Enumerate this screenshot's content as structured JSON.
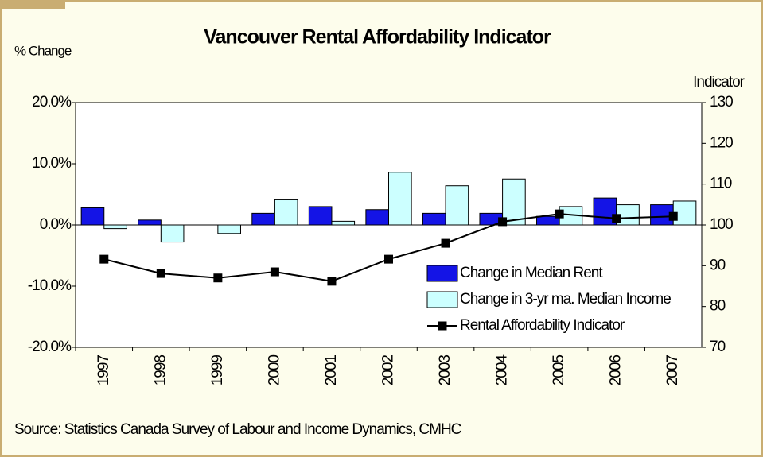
{
  "chart_data": {
    "type": "bar",
    "title": "Vancouver Rental Affordability Indicator",
    "y_label": "% Change",
    "y2_label": "Indicator",
    "source": "Source: Statistics Canada Survey of Labour and Income Dynamics, CMHC",
    "categories": [
      "1997",
      "1998",
      "1999",
      "2000",
      "2001",
      "2002",
      "2003",
      "2004",
      "2005",
      "2006",
      "2007"
    ],
    "series": [
      {
        "name": "Change in Median Rent",
        "type": "bar",
        "color": "#1414e6",
        "values": [
          2.8,
          0.8,
          0,
          1.9,
          3.0,
          2.5,
          1.9,
          1.9,
          1.4,
          4.4,
          3.3
        ]
      },
      {
        "name": "Change in 3-yr ma. Median Income",
        "type": "bar",
        "color": "#ccffff",
        "values": [
          -0.6,
          -2.8,
          -1.4,
          4.1,
          0.6,
          8.6,
          6.4,
          7.5,
          3.0,
          3.3,
          3.9
        ]
      },
      {
        "name": "Rental Affordability Indicator",
        "type": "line",
        "axis": "y2",
        "color": "#000000",
        "values": [
          91.6,
          88.1,
          87.0,
          88.5,
          86.2,
          91.6,
          95.5,
          100.8,
          102.7,
          101.6,
          102.1
        ]
      }
    ],
    "ylim": [
      -20,
      20
    ],
    "yticks": [
      {
        "value": -20,
        "label": "-20.0%"
      },
      {
        "value": -10,
        "label": "-10.0%"
      },
      {
        "value": 0,
        "label": "0.0%"
      },
      {
        "value": 10,
        "label": "10.0%"
      },
      {
        "value": 20,
        "label": "20.0%"
      }
    ],
    "y2lim": [
      70,
      130
    ],
    "y2ticks": [
      70,
      80,
      90,
      100,
      110,
      120,
      130
    ]
  }
}
